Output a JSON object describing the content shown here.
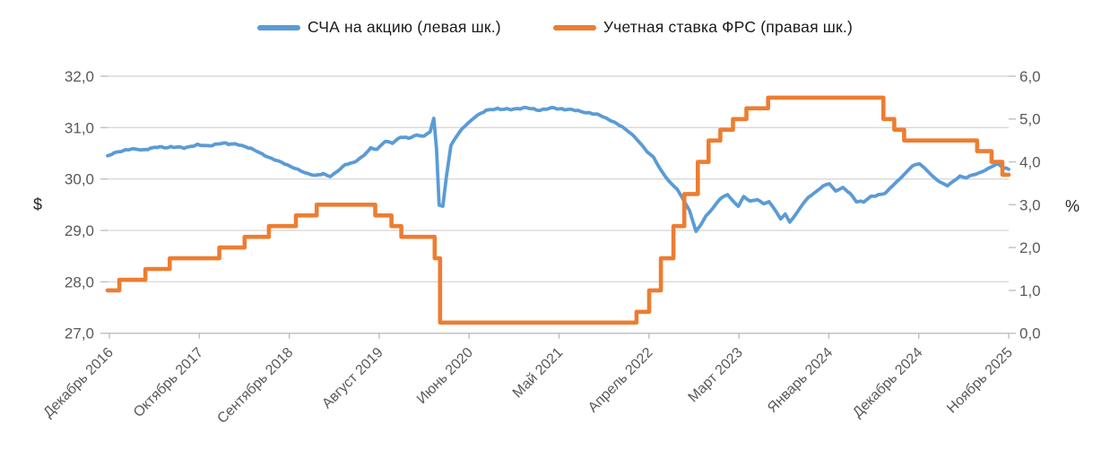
{
  "chart_data": {
    "type": "line",
    "title": "",
    "grid": "horizontal",
    "legend_position": "top",
    "left_axis": {
      "unit": "$",
      "min": 27,
      "max": 32,
      "tick_labels": [
        "32,0",
        "31,0",
        "30,0",
        "29,0",
        "28,0",
        "27,0"
      ]
    },
    "right_axis": {
      "unit": "%",
      "min": 0,
      "max": 6,
      "tick_labels": [
        "6,0",
        "5,0",
        "4,0",
        "3,0",
        "2,0",
        "1,0",
        "0,0"
      ]
    },
    "x_axis": {
      "tick_labels": [
        "Декабрь 2016",
        "Октябрь 2017",
        "Сентябрь 2018",
        "Август 2019",
        "Июнь 2020",
        "Май 2021",
        "Апрель 2022",
        "Март 2023",
        "Январь 2024",
        "Декабрь 2024",
        "Ноябрь 2025"
      ]
    },
    "series": [
      {
        "name": "СЧА на акцию (левая шк.)",
        "axis": "left",
        "color": "#5B9BD5",
        "style": "line",
        "points": [
          [
            0,
            30.45
          ],
          [
            0.01,
            30.52
          ],
          [
            0.023,
            30.58
          ],
          [
            0.04,
            30.57
          ],
          [
            0.055,
            30.62
          ],
          [
            0.07,
            30.62
          ],
          [
            0.085,
            30.61
          ],
          [
            0.1,
            30.66
          ],
          [
            0.114,
            30.65
          ],
          [
            0.129,
            30.7
          ],
          [
            0.144,
            30.67
          ],
          [
            0.159,
            30.6
          ],
          [
            0.174,
            30.46
          ],
          [
            0.189,
            30.35
          ],
          [
            0.204,
            30.24
          ],
          [
            0.219,
            30.12
          ],
          [
            0.231,
            30.07
          ],
          [
            0.239,
            30.1
          ],
          [
            0.247,
            30.05
          ],
          [
            0.255,
            30.15
          ],
          [
            0.264,
            30.28
          ],
          [
            0.274,
            30.33
          ],
          [
            0.284,
            30.45
          ],
          [
            0.292,
            30.6
          ],
          [
            0.299,
            30.58
          ],
          [
            0.308,
            30.73
          ],
          [
            0.316,
            30.7
          ],
          [
            0.325,
            30.82
          ],
          [
            0.334,
            30.79
          ],
          [
            0.343,
            30.86
          ],
          [
            0.351,
            30.83
          ],
          [
            0.358,
            30.92
          ],
          [
            0.362,
            31.18
          ],
          [
            0.365,
            30.6
          ],
          [
            0.368,
            29.5
          ],
          [
            0.372,
            29.47
          ],
          [
            0.376,
            30.05
          ],
          [
            0.381,
            30.65
          ],
          [
            0.386,
            30.8
          ],
          [
            0.393,
            30.97
          ],
          [
            0.401,
            31.1
          ],
          [
            0.41,
            31.24
          ],
          [
            0.42,
            31.33
          ],
          [
            0.433,
            31.37
          ],
          [
            0.448,
            31.35
          ],
          [
            0.463,
            31.39
          ],
          [
            0.478,
            31.34
          ],
          [
            0.493,
            31.38
          ],
          [
            0.507,
            31.36
          ],
          [
            0.522,
            31.33
          ],
          [
            0.535,
            31.28
          ],
          [
            0.547,
            31.24
          ],
          [
            0.559,
            31.13
          ],
          [
            0.571,
            31.02
          ],
          [
            0.582,
            30.87
          ],
          [
            0.591,
            30.7
          ],
          [
            0.599,
            30.53
          ],
          [
            0.606,
            30.42
          ],
          [
            0.613,
            30.2
          ],
          [
            0.619,
            30.05
          ],
          [
            0.625,
            29.92
          ],
          [
            0.632,
            29.8
          ],
          [
            0.639,
            29.6
          ],
          [
            0.646,
            29.38
          ],
          [
            0.653,
            28.98
          ],
          [
            0.658,
            29.1
          ],
          [
            0.664,
            29.28
          ],
          [
            0.672,
            29.44
          ],
          [
            0.68,
            29.62
          ],
          [
            0.688,
            29.7
          ],
          [
            0.695,
            29.55
          ],
          [
            0.7,
            29.47
          ],
          [
            0.706,
            29.66
          ],
          [
            0.713,
            29.57
          ],
          [
            0.721,
            29.6
          ],
          [
            0.728,
            29.52
          ],
          [
            0.734,
            29.56
          ],
          [
            0.74,
            29.42
          ],
          [
            0.747,
            29.22
          ],
          [
            0.752,
            29.32
          ],
          [
            0.757,
            29.16
          ],
          [
            0.764,
            29.32
          ],
          [
            0.771,
            29.5
          ],
          [
            0.778,
            29.65
          ],
          [
            0.786,
            29.75
          ],
          [
            0.794,
            29.86
          ],
          [
            0.801,
            29.91
          ],
          [
            0.808,
            29.77
          ],
          [
            0.816,
            29.83
          ],
          [
            0.824,
            29.72
          ],
          [
            0.831,
            29.57
          ],
          [
            0.839,
            29.55
          ],
          [
            0.847,
            29.66
          ],
          [
            0.855,
            29.69
          ],
          [
            0.863,
            29.72
          ],
          [
            0.871,
            29.87
          ],
          [
            0.879,
            30.0
          ],
          [
            0.887,
            30.14
          ],
          [
            0.893,
            30.26
          ],
          [
            0.901,
            30.3
          ],
          [
            0.909,
            30.17
          ],
          [
            0.917,
            30.03
          ],
          [
            0.925,
            29.93
          ],
          [
            0.932,
            29.87
          ],
          [
            0.939,
            29.96
          ],
          [
            0.946,
            30.06
          ],
          [
            0.953,
            30.02
          ],
          [
            0.96,
            30.08
          ],
          [
            0.967,
            30.12
          ],
          [
            0.974,
            30.17
          ],
          [
            0.981,
            30.24
          ],
          [
            0.988,
            30.3
          ],
          [
            0.994,
            30.22
          ],
          [
            1,
            30.19
          ]
        ]
      },
      {
        "name": "Учетная ставка ФРС (правая шк.)",
        "axis": "right",
        "color": "#ED7D31",
        "style": "step",
        "points": [
          [
            0,
            1.0
          ],
          [
            0.013,
            1.25
          ],
          [
            0.042,
            1.5
          ],
          [
            0.069,
            1.75
          ],
          [
            0.124,
            2.0
          ],
          [
            0.152,
            2.25
          ],
          [
            0.179,
            2.5
          ],
          [
            0.209,
            2.75
          ],
          [
            0.232,
            3.0
          ],
          [
            0.297,
            2.75
          ],
          [
            0.315,
            2.5
          ],
          [
            0.326,
            2.25
          ],
          [
            0.363,
            1.75
          ],
          [
            0.369,
            0.25
          ],
          [
            0.587,
            0.5
          ],
          [
            0.601,
            1.0
          ],
          [
            0.614,
            1.75
          ],
          [
            0.628,
            2.5
          ],
          [
            0.64,
            3.25
          ],
          [
            0.655,
            4.0
          ],
          [
            0.667,
            4.5
          ],
          [
            0.68,
            4.75
          ],
          [
            0.694,
            5.0
          ],
          [
            0.709,
            5.25
          ],
          [
            0.733,
            5.5
          ],
          [
            0.861,
            5.0
          ],
          [
            0.873,
            4.75
          ],
          [
            0.884,
            4.5
          ],
          [
            0.965,
            4.25
          ],
          [
            0.981,
            4.0
          ],
          [
            0.993,
            3.7
          ]
        ]
      }
    ]
  }
}
